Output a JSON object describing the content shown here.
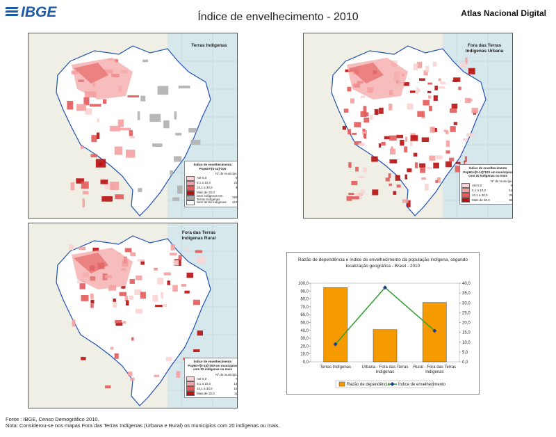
{
  "header": {
    "logo_text": "IBGE",
    "title": "Índice de envelhecimento - 2010",
    "atlas": "Atlas Nacional Digital"
  },
  "maps": [
    {
      "label": "Terras Indígenas",
      "legend": {
        "header": "Índice de envelhecimento Pop60+/(0-14)*100",
        "count_header": "Nº de municípios",
        "rows": [
          {
            "label": "Até 5,0",
            "count": "66",
            "color": "#fad4d4"
          },
          {
            "label": "5,1 a 10,0",
            "count": "231",
            "color": "#f4a0a0"
          },
          {
            "label": "10,1 a 30,0",
            "count": "47",
            "color": "#e35a5a"
          },
          {
            "label": "Mais de 30,0",
            "count": "6",
            "color": "#b80e0e"
          },
          {
            "label": "Sem indígenas em Terras Indígenas",
            "count": "1695",
            "color": "#a9a9a9"
          },
          {
            "label": "Sem terras indígenas",
            "count": "4195",
            "color": "#ffffff"
          }
        ]
      }
    },
    {
      "label": "Fora das Terras Indígenas Urbana",
      "legend": {
        "header": "Índice de envelhecimento Pop60+/(0-14)*100 em municípios com 20 indígenas ou mais",
        "count_header": "Nº de municípios",
        "rows": [
          {
            "label": "Até 5,0",
            "count": "93",
            "color": "#fad4d4"
          },
          {
            "label": "5,1 a 10,0",
            "count": "140",
            "color": "#f4a0a0"
          },
          {
            "label": "10,1 a 30,0",
            "count": "284",
            "color": "#e35a5a"
          },
          {
            "label": "Mais de 30,0",
            "count": "652",
            "color": "#b80e0e"
          }
        ]
      }
    },
    {
      "label": "Fora das Terras Indígenas Rural",
      "legend": {
        "header": "Índice de envelhecimento Pop60+/(0-14)*100 em municípios com 20 indígenas ou mais",
        "count_header": "Nº de municípios",
        "rows": [
          {
            "label": "Até 5,0",
            "count": "74",
            "color": "#fad4d4"
          },
          {
            "label": "5,1 a 10,0",
            "count": "145",
            "color": "#f4a0a0"
          },
          {
            "label": "10,1 a 30,0",
            "count": "185",
            "color": "#e35a5a"
          },
          {
            "label": "Mais de 30,0",
            "count": "115",
            "color": "#b80e0e"
          }
        ]
      }
    }
  ],
  "chart_data": {
    "type": "bar",
    "title": "Razão de dependência e índice de envelhecimento da população indígena, segundo localização geográfica - Brasil - 2010",
    "categories": [
      "Terras Indígenas",
      "Urbana - Fora das Terras Indígenas",
      "Rural - Fora das Terras Indígenas"
    ],
    "series": [
      {
        "name": "Razão de dependência",
        "type": "bar",
        "axis": "left",
        "values": [
          94.5,
          41.0,
          75.5
        ],
        "color": "#f59a00"
      },
      {
        "name": "Índice de envelhecimento",
        "type": "line",
        "axis": "right",
        "values": [
          9.0,
          37.8,
          15.8
        ],
        "color": "#2ea02e",
        "marker_color": "#1f3a8a"
      }
    ],
    "ylim_left": [
      0,
      100
    ],
    "yticks_left": [
      "0,0",
      "10,0",
      "20,0",
      "30,0",
      "40,0",
      "50,0",
      "60,0",
      "70,0",
      "80,0",
      "90,0",
      "100,0"
    ],
    "ylim_right": [
      0,
      40
    ],
    "yticks_right": [
      "0,0",
      "5,0",
      "10,0",
      "15,0",
      "20,0",
      "25,0",
      "30,0",
      "35,0",
      "40,0"
    ],
    "legend_placement": "bottom"
  },
  "footer": {
    "source": "Fonte : IBGE, Censo Demográfico 2010.",
    "note": "Nota: Considerou-se nos mapas Fora das Terras Indígenas (Urbana e Rural) os municípios com 20 indígenas ou mais."
  }
}
